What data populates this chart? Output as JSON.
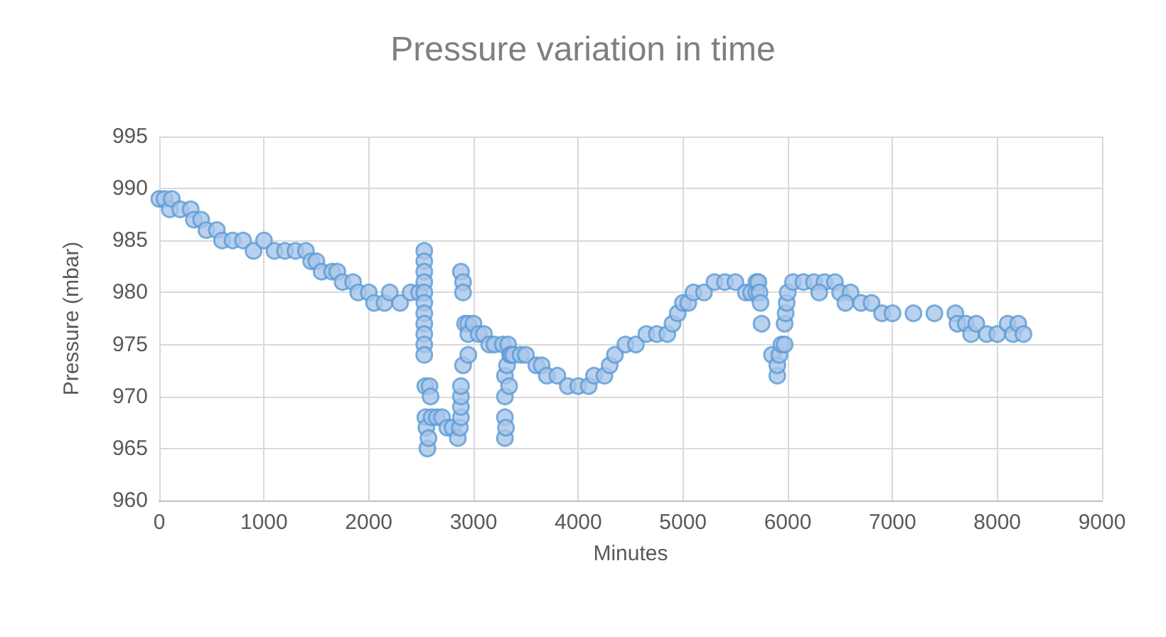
{
  "chart_data": {
    "type": "scatter",
    "title": "Pressure variation in time",
    "xlabel": "Minutes",
    "ylabel": "Pressure (mbar)",
    "xlim": [
      0,
      9000
    ],
    "xticks": [
      0,
      1000,
      2000,
      3000,
      4000,
      5000,
      6000,
      7000,
      8000,
      9000
    ],
    "ylim": [
      960,
      995
    ],
    "yticks": [
      960,
      965,
      970,
      975,
      980,
      985,
      990,
      995
    ],
    "grid": true,
    "marker": "circle",
    "series": [
      {
        "color": "#5b9bd5",
        "x": [
          0,
          50,
          100,
          120,
          200,
          300,
          330,
          400,
          450,
          550,
          600,
          700,
          800,
          900,
          1000,
          1100,
          1200,
          1300,
          1400,
          1450,
          1500,
          1550,
          1650,
          1700,
          1750,
          1850,
          1900,
          2000,
          2050,
          2150,
          2200,
          2300,
          2400,
          2480,
          2530,
          2530,
          2530,
          2530,
          2530,
          2530,
          2530,
          2530,
          2530,
          2530,
          2530,
          2540,
          2540,
          2550,
          2560,
          2570,
          2580,
          2590,
          2600,
          2650,
          2700,
          2750,
          2800,
          2850,
          2870,
          2880,
          2880,
          2880,
          2880,
          2880,
          2900,
          2900,
          2900,
          2920,
          2950,
          2950,
          2950,
          3000,
          3050,
          3100,
          3150,
          3200,
          3280,
          3300,
          3300,
          3300,
          3300,
          3310,
          3320,
          3330,
          3340,
          3350,
          3360,
          3380,
          3450,
          3500,
          3600,
          3650,
          3700,
          3800,
          3900,
          4000,
          4100,
          4150,
          4250,
          4300,
          4350,
          4450,
          4550,
          4650,
          4750,
          4850,
          4900,
          4950,
          5000,
          5050,
          5100,
          5200,
          5300,
          5400,
          5500,
          5600,
          5650,
          5700,
          5700,
          5720,
          5730,
          5740,
          5750,
          5850,
          5900,
          5900,
          5920,
          5940,
          5970,
          5970,
          5980,
          5990,
          6000,
          6050,
          6150,
          6250,
          6350,
          6450,
          6300,
          6500,
          6600,
          6550,
          6700,
          6800,
          6900,
          7000,
          7200,
          7400,
          7600,
          7620,
          7700,
          7750,
          7800,
          7900,
          8000,
          8100,
          8150,
          8200,
          8250
        ],
        "values": [
          989,
          989,
          988,
          989,
          988,
          988,
          987,
          987,
          986,
          986,
          985,
          985,
          985,
          984,
          985,
          984,
          984,
          984,
          984,
          983,
          983,
          982,
          982,
          982,
          981,
          981,
          980,
          980,
          979,
          979,
          980,
          979,
          980,
          980,
          984,
          983,
          982,
          981,
          980,
          979,
          978,
          977,
          976,
          975,
          974,
          971,
          968,
          967,
          965,
          966,
          971,
          970,
          968,
          968,
          968,
          967,
          967,
          966,
          967,
          968,
          969,
          970,
          971,
          982,
          981,
          980,
          973,
          977,
          977,
          976,
          974,
          977,
          976,
          976,
          975,
          975,
          975,
          966,
          968,
          970,
          972,
          967,
          973,
          975,
          971,
          974,
          974,
          974,
          974,
          974,
          973,
          973,
          972,
          972,
          971,
          971,
          971,
          972,
          972,
          973,
          974,
          975,
          975,
          976,
          976,
          976,
          977,
          978,
          979,
          979,
          980,
          980,
          981,
          981,
          981,
          980,
          980,
          980,
          981,
          981,
          980,
          979,
          977,
          974,
          972,
          973,
          974,
          975,
          975,
          977,
          978,
          979,
          980,
          981,
          981,
          981,
          981,
          981,
          980,
          980,
          980,
          979,
          979,
          979,
          978,
          978,
          978,
          978,
          978,
          977,
          977,
          976,
          977,
          976,
          976,
          977,
          976,
          977,
          976
        ]
      }
    ]
  }
}
